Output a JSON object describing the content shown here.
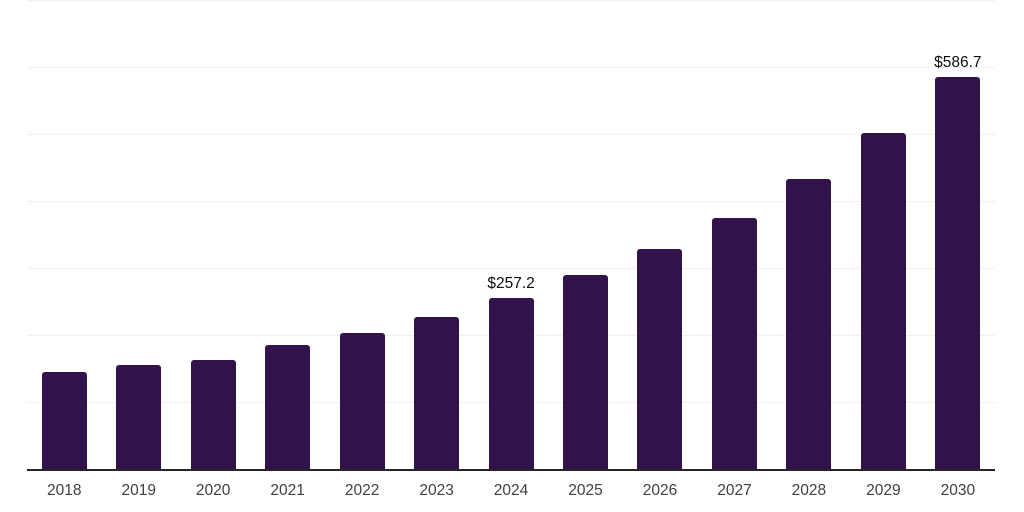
{
  "chart_data": {
    "type": "bar",
    "title": "",
    "xlabel": "",
    "ylabel": "",
    "categories": [
      "2018",
      "2019",
      "2020",
      "2021",
      "2022",
      "2023",
      "2024",
      "2025",
      "2026",
      "2027",
      "2028",
      "2029",
      "2030"
    ],
    "values": [
      146.0,
      156.5,
      164.0,
      186.5,
      204.0,
      229.0,
      257.2,
      291.5,
      329.5,
      376.5,
      434.0,
      503.5,
      586.7
    ],
    "data_labels": {
      "2024": "$257.2",
      "2030": "$586.7"
    },
    "ylim": [
      0,
      700
    ],
    "gridline_step": 100,
    "grid": "horizontal",
    "legend_position": "none",
    "colors": {
      "bar": "#31124a",
      "axis_line": "#262626",
      "gridline": "#f0f0f0",
      "tick_label": "#404040",
      "data_label": "#0d0d0d"
    }
  }
}
